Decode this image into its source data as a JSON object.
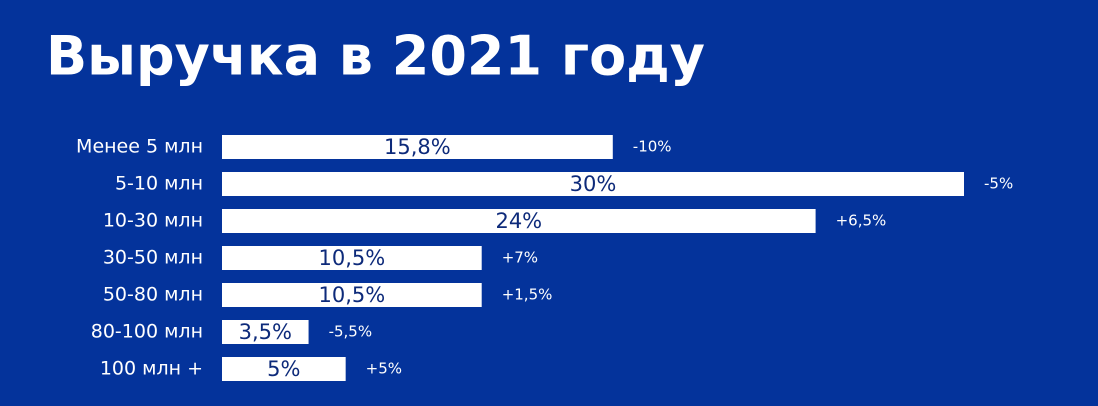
{
  "chart_data": {
    "type": "bar",
    "orientation": "horizontal",
    "title": "Выручка в 2021 году",
    "categories": [
      "Менее 5 млн",
      "5-10 млн",
      "10-30 млн",
      "30-50 млн",
      "50-80 млн",
      "80-100 млн",
      "100 млн +"
    ],
    "values": [
      15.8,
      30,
      24,
      10.5,
      10.5,
      3.5,
      5
    ],
    "value_labels": [
      "15,8%",
      "30%",
      "24%",
      "10,5%",
      "10,5%",
      "3,5%",
      "5%"
    ],
    "annotations": [
      "-10%",
      "-5%",
      "+6,5%",
      "+7%",
      "+1,5%",
      "-5,5%",
      "+5%"
    ],
    "color": "#ffffff"
  }
}
